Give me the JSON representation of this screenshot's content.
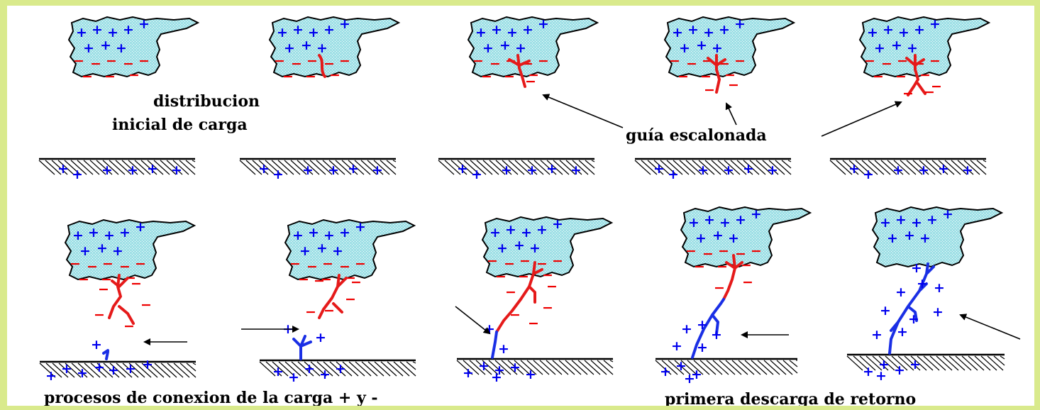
{
  "colors": {
    "border": "#d9ea8c",
    "cloud": "#9fe0e6",
    "positive_charge": "#0000ee",
    "negative_charge": "#ee0000",
    "downward_leader": "#e51a1a",
    "upward_leader": "#1a2fe5"
  },
  "symbols": {
    "positive": "+",
    "negative": "−"
  },
  "labels": {
    "initial_distribution_line1": "distribucion",
    "initial_distribution_line2": "inicial de carga",
    "stepped_leader": "guía escalonada",
    "connection_process": "procesos de conexion de la carga + y -",
    "return_stroke": "primera descarga de retorno"
  },
  "stages": {
    "top_row": [
      "initial-charge-distribution",
      "stepped-leader-1",
      "stepped-leader-2",
      "stepped-leader-3",
      "stepped-leader-4"
    ],
    "bottom_row": [
      "connection-1",
      "connection-2",
      "connection-3",
      "return-stroke-1",
      "return-stroke-2"
    ]
  }
}
